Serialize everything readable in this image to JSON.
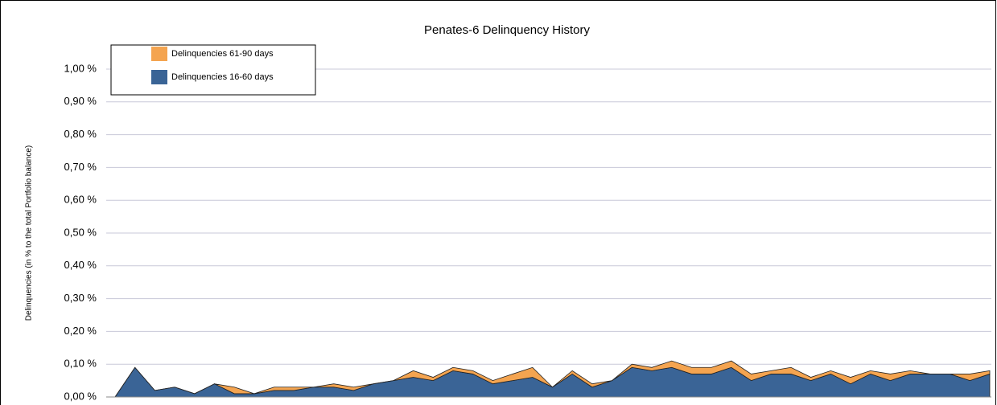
{
  "chart_data": {
    "type": "area",
    "stacked": true,
    "title": "Penates-6 Delinquency History",
    "y_label": "Delinquencies (in % to the total Portfolio balance)",
    "categories": [
      null,
      null,
      null,
      null,
      null,
      null,
      null,
      null,
      null,
      null,
      null,
      null,
      null,
      null,
      null,
      null,
      null,
      null,
      null,
      null,
      null,
      null,
      null,
      null,
      null,
      null,
      null,
      null,
      null,
      null,
      null,
      null,
      null,
      null,
      null,
      null,
      null,
      null,
      null,
      null,
      null,
      null,
      null,
      null,
      null
    ],
    "series": [
      {
        "name": "Delinquencies 16-60 days",
        "color": "#3a6496",
        "values": [
          0,
          0.09,
          0.02,
          0.03,
          0.01,
          0.04,
          0.01,
          0.01,
          0.02,
          0.02,
          0.03,
          0.03,
          0.02,
          0.04,
          0.05,
          0.06,
          0.05,
          0.08,
          0.07,
          0.04,
          0.05,
          0.06,
          0.03,
          0.07,
          0.03,
          0.05,
          0.09,
          0.08,
          0.09,
          0.07,
          0.07,
          0.09,
          0.05,
          0.07,
          0.07,
          0.05,
          0.07,
          0.04,
          0.07,
          0.05,
          0.07,
          0.07,
          0.07,
          0.05,
          0.07
        ]
      },
      {
        "name": "Delinquencies 61-90 days",
        "color": "#f4a450",
        "values": [
          0,
          0,
          0,
          0,
          0,
          0,
          0.02,
          0,
          0.01,
          0.01,
          0,
          0.01,
          0.01,
          0,
          0,
          0.02,
          0.01,
          0.01,
          0.01,
          0.01,
          0.02,
          0.03,
          0,
          0.01,
          0.01,
          0,
          0.01,
          0.01,
          0.02,
          0.02,
          0.02,
          0.02,
          0.02,
          0.01,
          0.02,
          0.01,
          0.01,
          0.02,
          0.01,
          0.02,
          0.01,
          0,
          0,
          0.02,
          0.01
        ]
      }
    ],
    "ylim": [
      0,
      1
    ],
    "yticks": [
      {
        "value": 0,
        "label": "0,00 %"
      },
      {
        "value": 0.1,
        "label": "0,10 %"
      },
      {
        "value": 0.2,
        "label": "0,20 %"
      },
      {
        "value": 0.3,
        "label": "0,30 %"
      },
      {
        "value": 0.4,
        "label": "0,40 %"
      },
      {
        "value": 0.5,
        "label": "0,50 %"
      },
      {
        "value": 0.6,
        "label": "0,60 %"
      },
      {
        "value": 0.7,
        "label": "0,70 %"
      },
      {
        "value": 0.8,
        "label": "0,80 %"
      },
      {
        "value": 0.9,
        "label": "0,90 %"
      },
      {
        "value": 1,
        "label": "1,00 %"
      }
    ],
    "grid": true,
    "legend": "upper left"
  }
}
